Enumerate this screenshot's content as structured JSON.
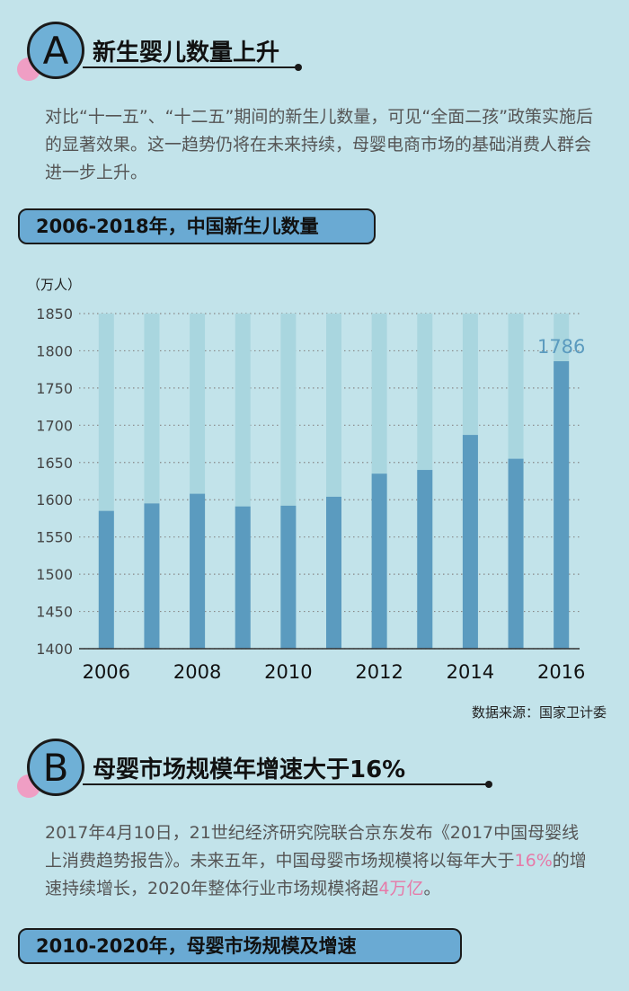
{
  "sectionA": {
    "letter": "A",
    "title": "新生婴儿数量上升",
    "paragraph": "对比“十一五”、“十二五”期间的新生儿数量，可见“全面二孩”政策实施后的显著效果。这一趋势仍将在未来持续，母婴电商市场的基础消费人群会进一步上升。"
  },
  "banner1": "2006-2018年，中国新生儿数量",
  "chart_data": {
    "type": "bar",
    "ylabel": "（万人）",
    "ylim": [
      1400,
      1850
    ],
    "yticks": [
      1400,
      1450,
      1500,
      1550,
      1600,
      1650,
      1700,
      1750,
      1800,
      1850
    ],
    "categories": [
      "2006",
      "2007",
      "2008",
      "2009",
      "2010",
      "2011",
      "2012",
      "2013",
      "2014",
      "2015",
      "2016"
    ],
    "xtick_labels": [
      "2006",
      "",
      "2008",
      "",
      "2010",
      "",
      "2012",
      "",
      "2014",
      "",
      "2016"
    ],
    "values": [
      1585,
      1595,
      1608,
      1591,
      1592,
      1604,
      1635,
      1640,
      1687,
      1655,
      1786
    ],
    "annotation": {
      "category": "2016",
      "text": "1786"
    },
    "colors": {
      "bar": "#5b9bbf",
      "background_bar": "#a9d6df",
      "annotation": "#5b9bbf",
      "axis": "#333333",
      "grid": "#888888"
    }
  },
  "source": "数据来源：国家卫计委",
  "sectionB": {
    "letter": "B",
    "title": "母婴市场规模年增速大于16%",
    "para_part1": "2017年4月10日，21世纪经济研究院联合京东发布《2017中国母婴线上消费趋势报告》。未来五年，中国母婴市场规模将以每年大于",
    "para_hl1": "16%",
    "para_part2": "的增速持续增长，2020年整体行业市场规模将超",
    "para_hl2": "4万亿",
    "para_part3": "。"
  },
  "banner2": "2010-2020年，母婴市场规模及增速"
}
